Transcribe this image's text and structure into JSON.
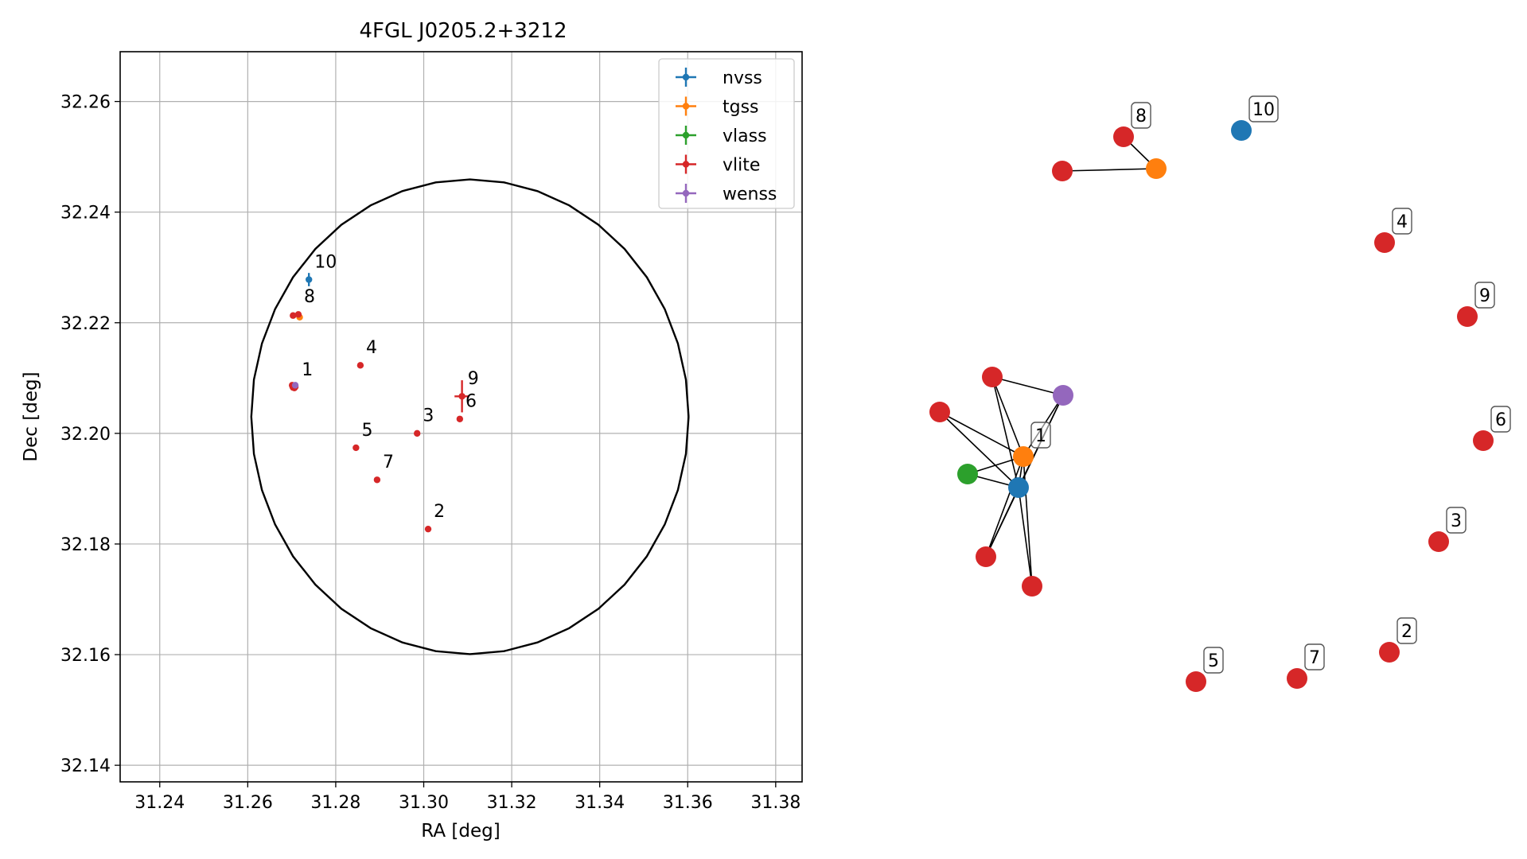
{
  "chart_data": [
    {
      "type": "scatter",
      "title": "4FGL J0205.2+3212",
      "xlabel": "RA [deg]",
      "ylabel": "Dec [deg]",
      "xlim": [
        31.231,
        31.386
      ],
      "ylim": [
        32.137,
        32.269
      ],
      "xticks": [
        31.24,
        31.26,
        31.28,
        31.3,
        31.32,
        31.34,
        31.36,
        31.38
      ],
      "xtick_labels": [
        "31.24",
        "31.26",
        "31.28",
        "31.30",
        "31.32",
        "31.34",
        "31.36",
        "31.38"
      ],
      "yticks": [
        32.14,
        32.16,
        32.18,
        32.2,
        32.22,
        32.24,
        32.26
      ],
      "ytick_labels": [
        "32.14",
        "32.16",
        "32.18",
        "32.20",
        "32.22",
        "32.24",
        "32.26"
      ],
      "grid": true,
      "legend_position": "top-right",
      "ellipse": {
        "center": [
          31.3105,
          32.203
        ],
        "ra_semi_axis": 0.0497,
        "dec_semi_axis": 0.0429,
        "color": "#000000"
      },
      "series": [
        {
          "name": "nvss",
          "color": "#1f77b4",
          "points": [
            {
              "ra": 31.2705,
              "dec": 32.2083,
              "ra_err": 0,
              "dec_err": 0.0004
            },
            {
              "ra": 31.2739,
              "dec": 32.2278,
              "ra_err": 0,
              "dec_err": 0.0012
            }
          ]
        },
        {
          "name": "tgss",
          "color": "#ff7f0e",
          "points": [
            {
              "ra": 31.2718,
              "dec": 32.221,
              "ra_err": 0,
              "dec_err": 0
            }
          ]
        },
        {
          "name": "vlass",
          "color": "#2ca02c",
          "points": [
            {
              "ra": 31.2704,
              "dec": 32.2084,
              "ra_err": 0,
              "dec_err": 0
            }
          ]
        },
        {
          "name": "vlite",
          "color": "#d62728",
          "points": [
            {
              "ra": 31.2703,
              "dec": 32.2083,
              "ra_err": 0,
              "dec_err": 0
            },
            {
              "ra": 31.2702,
              "dec": 32.2085,
              "ra_err": 0,
              "dec_err": 0
            },
            {
              "ra": 31.2706,
              "dec": 32.2082,
              "ra_err": 0,
              "dec_err": 0
            },
            {
              "ra": 31.2708,
              "dec": 32.2084,
              "ra_err": 0,
              "dec_err": 0
            },
            {
              "ra": 31.2701,
              "dec": 32.2087,
              "ra_err": 0,
              "dec_err": 0
            },
            {
              "ra": 31.301,
              "dec": 32.1827,
              "ra_err": 0,
              "dec_err": 0
            },
            {
              "ra": 31.2985,
              "dec": 32.2,
              "ra_err": 0,
              "dec_err": 0
            },
            {
              "ra": 31.2856,
              "dec": 32.2123,
              "ra_err": 0,
              "dec_err": 0
            },
            {
              "ra": 31.2846,
              "dec": 32.1974,
              "ra_err": 0,
              "dec_err": 0
            },
            {
              "ra": 31.3082,
              "dec": 32.2026,
              "ra_err": 0,
              "dec_err": 0
            },
            {
              "ra": 31.2894,
              "dec": 32.1916,
              "ra_err": 0,
              "dec_err": 0
            },
            {
              "ra": 31.2715,
              "dec": 32.2215,
              "ra_err": 0,
              "dec_err": 0
            },
            {
              "ra": 31.2703,
              "dec": 32.2213,
              "ra_err": 0,
              "dec_err": 0
            },
            {
              "ra": 31.3087,
              "dec": 32.2067,
              "ra_err": 0.0017,
              "dec_err": 0.0029
            }
          ]
        },
        {
          "name": "wenss",
          "color": "#9467bd",
          "points": [
            {
              "ra": 31.2708,
              "dec": 32.2087,
              "ra_err": 0,
              "dec_err": 0.0004
            }
          ]
        }
      ],
      "labels": [
        {
          "text": "1",
          "ra": 31.2712,
          "dec": 32.2099
        },
        {
          "text": "2",
          "ra": 31.3012,
          "dec": 32.1843
        },
        {
          "text": "3",
          "ra": 31.2987,
          "dec": 32.2016
        },
        {
          "text": "4",
          "ra": 31.2858,
          "dec": 32.2139
        },
        {
          "text": "5",
          "ra": 31.2848,
          "dec": 32.199
        },
        {
          "text": "6",
          "ra": 31.3084,
          "dec": 32.2042
        },
        {
          "text": "7",
          "ra": 31.2896,
          "dec": 32.1932
        },
        {
          "text": "8",
          "ra": 31.2717,
          "dec": 32.2231
        },
        {
          "text": "9",
          "ra": 31.3089,
          "dec": 32.2083
        },
        {
          "text": "10",
          "ra": 31.2741,
          "dec": 32.2294
        }
      ]
    },
    {
      "type": "network",
      "nodes": [
        {
          "id": "a",
          "color": "#d62728",
          "label": ""
        },
        {
          "id": "b",
          "color": "#d62728",
          "label": ""
        },
        {
          "id": "c",
          "color": "#9467bd",
          "label": ""
        },
        {
          "id": "d",
          "color": "#ff7f0e",
          "label": "1"
        },
        {
          "id": "e",
          "color": "#2ca02c",
          "label": ""
        },
        {
          "id": "f",
          "color": "#1f77b4",
          "label": ""
        },
        {
          "id": "g",
          "color": "#d62728",
          "label": ""
        },
        {
          "id": "h",
          "color": "#d62728",
          "label": ""
        },
        {
          "id": "i",
          "color": "#d62728",
          "label": ""
        },
        {
          "id": "j",
          "color": "#ff7f0e",
          "label": ""
        },
        {
          "id": "k",
          "color": "#d62728",
          "label": "8"
        },
        {
          "id": "l",
          "color": "#1f77b4",
          "label": "10"
        },
        {
          "id": "m",
          "color": "#d62728",
          "label": "4"
        },
        {
          "id": "n",
          "color": "#d62728",
          "label": "9"
        },
        {
          "id": "o",
          "color": "#d62728",
          "label": "6"
        },
        {
          "id": "p",
          "color": "#d62728",
          "label": "3"
        },
        {
          "id": "q",
          "color": "#d62728",
          "label": "2"
        },
        {
          "id": "r",
          "color": "#d62728",
          "label": "7"
        },
        {
          "id": "s",
          "color": "#d62728",
          "label": "5"
        }
      ],
      "edges": [
        [
          "a",
          "c"
        ],
        [
          "a",
          "d"
        ],
        [
          "a",
          "f"
        ],
        [
          "b",
          "d"
        ],
        [
          "b",
          "f"
        ],
        [
          "c",
          "d"
        ],
        [
          "c",
          "f"
        ],
        [
          "c",
          "g"
        ],
        [
          "e",
          "d"
        ],
        [
          "e",
          "f"
        ],
        [
          "f",
          "d"
        ],
        [
          "f",
          "g"
        ],
        [
          "f",
          "h"
        ],
        [
          "d",
          "g"
        ],
        [
          "d",
          "h"
        ],
        [
          "i",
          "j"
        ],
        [
          "k",
          "j"
        ]
      ]
    }
  ]
}
